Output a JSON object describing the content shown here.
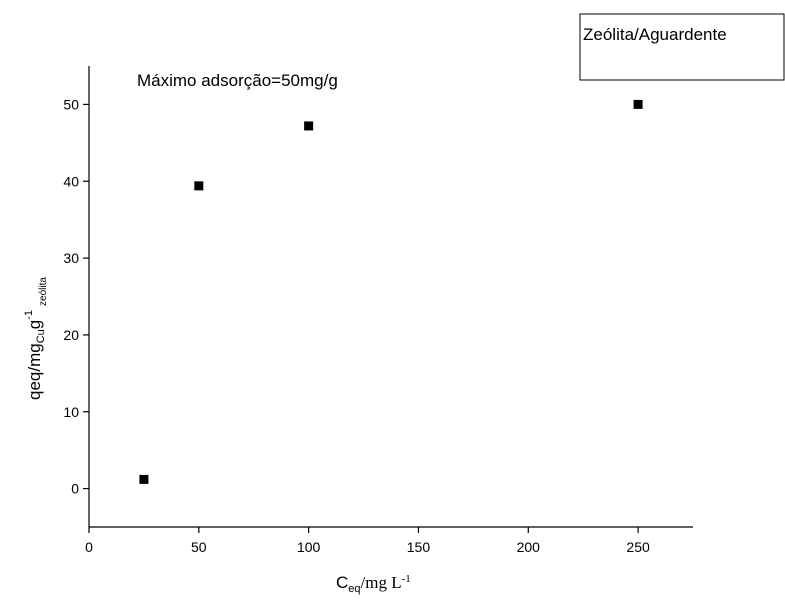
{
  "chart_data": {
    "type": "scatter",
    "annotation": "Máximo adsorção=50mg/g",
    "xlabel": [
      "C",
      "eq",
      "/mg L",
      "-1"
    ],
    "ylabel": [
      "qeq/mg",
      "Cu",
      "g",
      "-1",
      "zeólita"
    ],
    "series": [
      {
        "name": "Zeólita/Aguardente",
        "color": "#000000",
        "x": [
          25,
          50,
          100,
          250
        ],
        "values": [
          1.2,
          39.4,
          47.2,
          50
        ]
      }
    ],
    "xlim": [
      0,
      275
    ],
    "xticks": [
      0,
      50,
      100,
      150,
      200,
      250
    ],
    "ylim": [
      -5,
      55
    ],
    "yticks": [
      0,
      10,
      20,
      30,
      40,
      50
    ],
    "legend": "top right"
  }
}
